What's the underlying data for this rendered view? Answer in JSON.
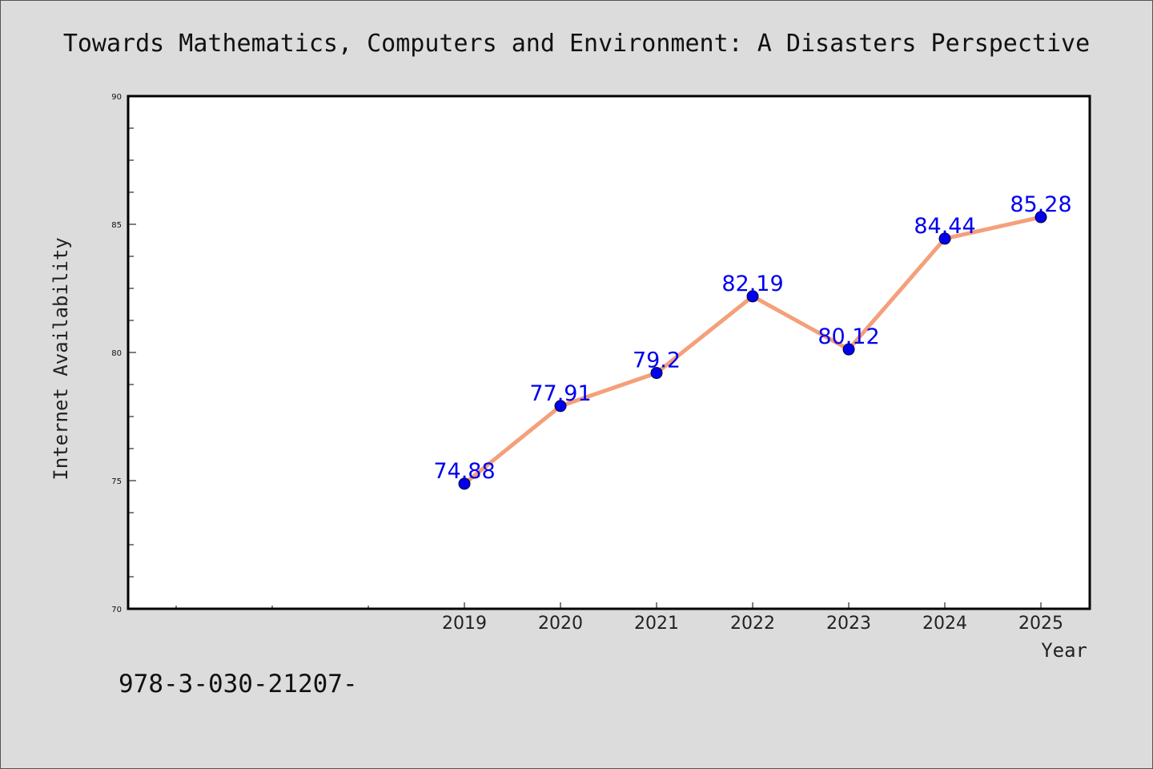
{
  "chart_data": {
    "type": "line",
    "title": "Towards Mathematics, Computers and Environment: A Disasters Perspective",
    "xlabel": "Year",
    "ylabel": "Internet Availability",
    "categories": [
      "2019",
      "2020",
      "2021",
      "2022",
      "2023",
      "2024",
      "2025"
    ],
    "series": [
      {
        "values": [
          74.88,
          77.91,
          79.2,
          82.19,
          80.12,
          84.44,
          85.28
        ],
        "labels": [
          "74.88",
          "77.91",
          "79.2",
          "82.19",
          "80.12",
          "84.44",
          "85.28"
        ],
        "line_color": "#f4a07a",
        "marker_color": "#0000ee"
      }
    ],
    "ylim": [
      70,
      90
    ],
    "yticks": [
      "70",
      "75",
      "80",
      "85",
      "90"
    ],
    "grid": false,
    "legend": "none"
  },
  "footer": {
    "text": "978-3-030-21207-"
  },
  "colors": {
    "background": "#dcdcdc",
    "plot_background": "#ffffff",
    "label_color": "#0000ee"
  }
}
